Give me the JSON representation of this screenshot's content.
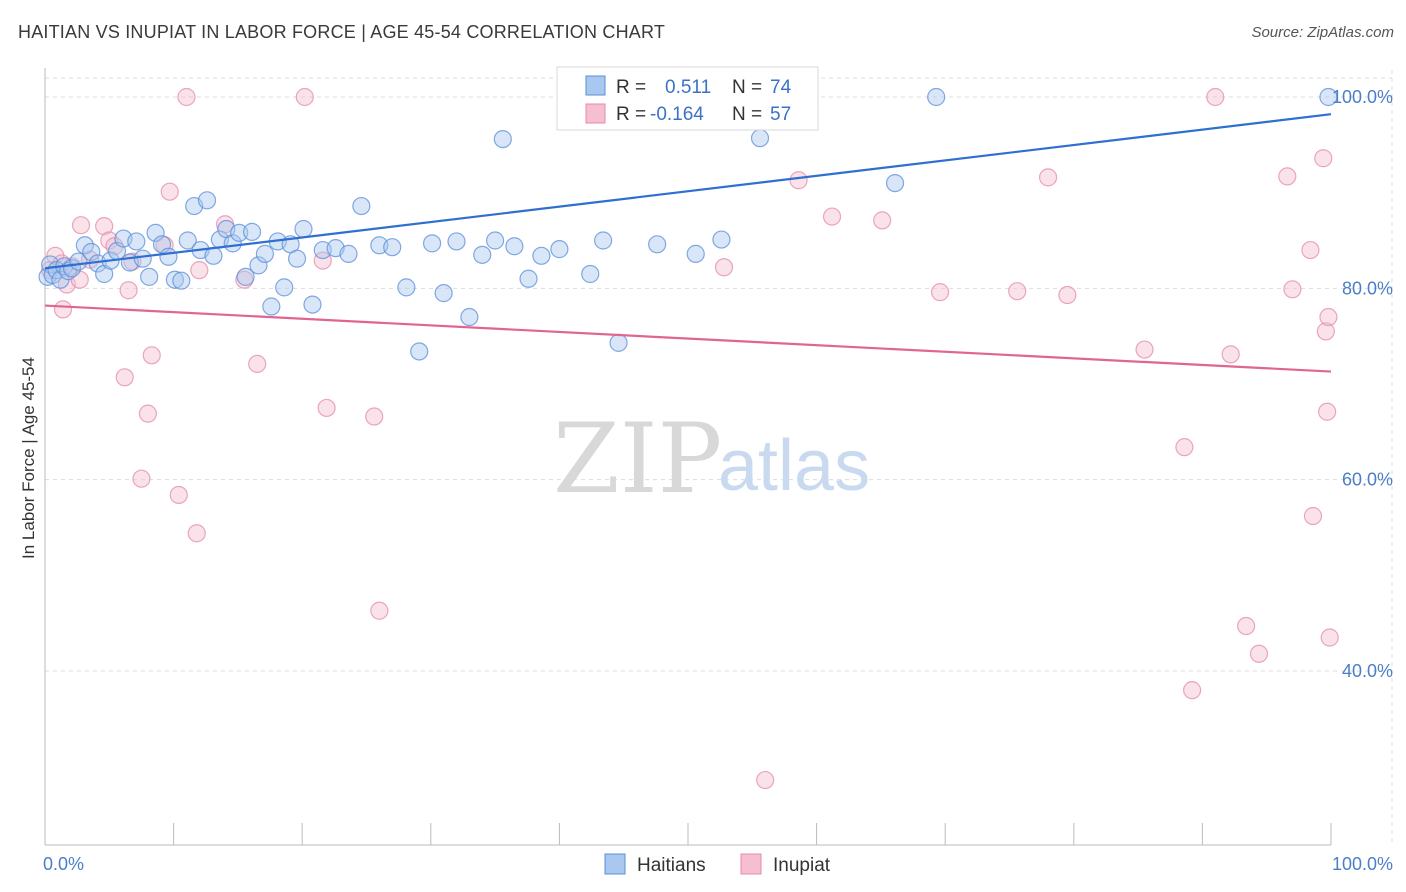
{
  "header": {
    "title": "HAITIAN VS INUPIAT IN LABOR FORCE | AGE 45-54 CORRELATION CHART",
    "source": "Source: ZipAtlas.com"
  },
  "watermark": {
    "zip": "ZIP",
    "atlas": "atlas"
  },
  "colors": {
    "haitians_fill": "#a9c8f0",
    "haitians_stroke": "#5b8ed8",
    "haitians_line": "#2f6fd0",
    "inupiat_fill": "#f5bfd0",
    "inupiat_stroke": "#e68aa8",
    "inupiat_line": "#e06592",
    "grid": "#dddddd"
  },
  "legend_box": {
    "rows": [
      {
        "r_label": "R =",
        "r_value": "0.511",
        "n_label": "N =",
        "n_value": "74"
      },
      {
        "r_label": "R =",
        "r_value": "-0.164",
        "n_label": "N =",
        "n_value": "57"
      }
    ]
  },
  "chart_data": {
    "type": "scatter",
    "title": "HAITIAN VS INUPIAT IN LABOR FORCE | AGE 45-54 CORRELATION CHART",
    "xlabel": "",
    "ylabel": "In Labor Force | Age 45-54",
    "xlim": [
      0,
      100
    ],
    "ylim": [
      20,
      102
    ],
    "x_tick_labels": [
      "0.0%",
      "100.0%"
    ],
    "y_ticks": [
      40,
      60,
      80,
      100
    ],
    "y_tick_labels": [
      "40.0%",
      "60.0%",
      "80.0%",
      "100.0%"
    ],
    "legend": [
      "Haitians",
      "Inupiat"
    ],
    "series": [
      {
        "name": "Haitians",
        "r": 0.511,
        "n": 74,
        "trend": {
          "x": [
            0,
            100
          ],
          "y": [
            82.1,
            98.2
          ]
        },
        "points": [
          [
            0.2,
            81.2
          ],
          [
            0.4,
            82.5
          ],
          [
            0.6,
            81.4
          ],
          [
            0.9,
            81.9
          ],
          [
            1.2,
            80.9
          ],
          [
            1.5,
            82.3
          ],
          [
            1.8,
            81.8
          ],
          [
            2.1,
            82.1
          ],
          [
            2.6,
            82.8
          ],
          [
            3.1,
            84.5
          ],
          [
            3.6,
            83.8
          ],
          [
            4.1,
            82.6
          ],
          [
            4.6,
            81.5
          ],
          [
            5.1,
            82.9
          ],
          [
            5.6,
            83.9
          ],
          [
            6.1,
            85.2
          ],
          [
            6.6,
            82.7
          ],
          [
            7.1,
            84.9
          ],
          [
            7.6,
            83.1
          ],
          [
            8.1,
            81.2
          ],
          [
            8.6,
            85.8
          ],
          [
            9.1,
            84.6
          ],
          [
            9.6,
            83.3
          ],
          [
            10.1,
            80.9
          ],
          [
            10.6,
            80.8
          ],
          [
            11.1,
            85.0
          ],
          [
            11.6,
            88.6
          ],
          [
            12.1,
            84.0
          ],
          [
            12.6,
            89.2
          ],
          [
            13.1,
            83.4
          ],
          [
            13.6,
            85.1
          ],
          [
            14.1,
            86.2
          ],
          [
            14.6,
            84.7
          ],
          [
            15.1,
            85.8
          ],
          [
            15.6,
            81.2
          ],
          [
            16.1,
            85.9
          ],
          [
            16.6,
            82.4
          ],
          [
            17.1,
            83.6
          ],
          [
            17.6,
            78.1
          ],
          [
            18.1,
            84.9
          ],
          [
            18.6,
            80.1
          ],
          [
            19.1,
            84.6
          ],
          [
            19.6,
            83.1
          ],
          [
            20.1,
            86.2
          ],
          [
            20.8,
            78.3
          ],
          [
            21.6,
            84.0
          ],
          [
            22.6,
            84.2
          ],
          [
            23.6,
            83.6
          ],
          [
            24.6,
            88.6
          ],
          [
            26.0,
            84.5
          ],
          [
            27.0,
            84.3
          ],
          [
            28.1,
            80.1
          ],
          [
            29.1,
            73.4
          ],
          [
            30.1,
            84.7
          ],
          [
            31.0,
            79.5
          ],
          [
            32.0,
            84.9
          ],
          [
            33.0,
            77.0
          ],
          [
            34.0,
            83.5
          ],
          [
            35.0,
            85.0
          ],
          [
            35.6,
            95.6
          ],
          [
            36.5,
            84.4
          ],
          [
            37.6,
            81.0
          ],
          [
            38.6,
            83.4
          ],
          [
            40.0,
            84.1
          ],
          [
            42.4,
            81.5
          ],
          [
            43.4,
            85.0
          ],
          [
            44.6,
            74.3
          ],
          [
            47.6,
            84.6
          ],
          [
            50.6,
            83.6
          ],
          [
            52.6,
            85.1
          ],
          [
            55.6,
            95.7
          ],
          [
            66.1,
            91.0
          ],
          [
            69.3,
            100.0
          ],
          [
            99.8,
            100.0
          ]
        ]
      },
      {
        "name": "Inupiat",
        "r": -0.164,
        "n": 57,
        "trend": {
          "x": [
            0,
            100
          ],
          "y": [
            78.2,
            71.3
          ]
        },
        "points": [
          [
            0.4,
            81.9
          ],
          [
            0.8,
            83.4
          ],
          [
            1.3,
            82.6
          ],
          [
            1.4,
            77.8
          ],
          [
            1.7,
            80.4
          ],
          [
            2.1,
            82.3
          ],
          [
            2.7,
            80.9
          ],
          [
            2.8,
            86.6
          ],
          [
            3.5,
            83.0
          ],
          [
            4.6,
            86.5
          ],
          [
            5.0,
            85.0
          ],
          [
            5.4,
            84.4
          ],
          [
            6.2,
            70.7
          ],
          [
            6.5,
            79.8
          ],
          [
            6.8,
            82.8
          ],
          [
            7.5,
            60.1
          ],
          [
            8.0,
            66.9
          ],
          [
            8.3,
            73.0
          ],
          [
            9.3,
            84.5
          ],
          [
            9.7,
            90.1
          ],
          [
            10.4,
            58.4
          ],
          [
            11.0,
            100.0
          ],
          [
            11.8,
            54.4
          ],
          [
            12.0,
            81.9
          ],
          [
            14.0,
            86.7
          ],
          [
            15.5,
            80.9
          ],
          [
            16.5,
            72.1
          ],
          [
            20.2,
            100.0
          ],
          [
            21.6,
            82.9
          ],
          [
            21.9,
            67.5
          ],
          [
            25.6,
            66.6
          ],
          [
            26.0,
            46.3
          ],
          [
            52.8,
            82.2
          ],
          [
            56.0,
            28.6
          ],
          [
            58.6,
            91.3
          ],
          [
            61.2,
            87.5
          ],
          [
            65.1,
            87.1
          ],
          [
            69.6,
            79.6
          ],
          [
            75.6,
            79.7
          ],
          [
            78.0,
            91.6
          ],
          [
            79.5,
            79.3
          ],
          [
            85.5,
            73.6
          ],
          [
            88.6,
            63.4
          ],
          [
            89.2,
            38.0
          ],
          [
            91.0,
            100.0
          ],
          [
            92.2,
            73.1
          ],
          [
            93.4,
            44.7
          ],
          [
            94.4,
            41.8
          ],
          [
            96.6,
            91.7
          ],
          [
            97.0,
            79.9
          ],
          [
            98.4,
            84.0
          ],
          [
            98.6,
            56.2
          ],
          [
            99.4,
            93.6
          ],
          [
            99.6,
            75.5
          ],
          [
            99.7,
            67.1
          ],
          [
            99.8,
            77.0
          ],
          [
            99.9,
            43.5
          ]
        ]
      }
    ]
  }
}
